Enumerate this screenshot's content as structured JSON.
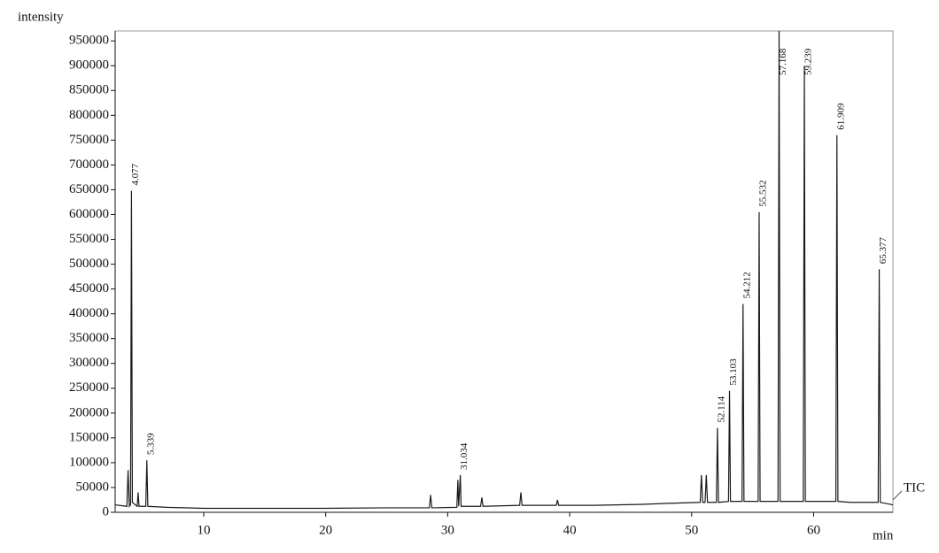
{
  "chart_data": {
    "type": "line",
    "y_label": "intensity",
    "x_label": "min",
    "trace_label": "TIC",
    "x": [
      2.74,
      3.7,
      3.8,
      3.9,
      4.0,
      4.077,
      4.15,
      4.55,
      4.62,
      4.7,
      5.25,
      5.339,
      5.42,
      7,
      10,
      15,
      20,
      25,
      28.5,
      28.6,
      28.7,
      30.75,
      30.834,
      30.9,
      31.034,
      31.1,
      32.7,
      32.8,
      32.9,
      35.9,
      36.0,
      36.1,
      38.9,
      39.0,
      39.1,
      42,
      46,
      48,
      50.7,
      50.8,
      50.9,
      51.1,
      51.2,
      51.3,
      52.03,
      52.114,
      52.2,
      53.02,
      53.103,
      53.18,
      54.13,
      54.212,
      54.29,
      55.45,
      55.532,
      55.61,
      57.08,
      57.168,
      57.25,
      59.15,
      59.239,
      59.32,
      61.82,
      61.909,
      61.99,
      63,
      65.29,
      65.377,
      65.46,
      66.5
    ],
    "series": [
      {
        "name": "TIC",
        "color": "#1a1a1a",
        "values": [
          15000,
          12000,
          85000,
          12000,
          15000,
          648000,
          20000,
          12000,
          40000,
          12000,
          12000,
          105000,
          12000,
          10000,
          8000,
          8000,
          8000,
          9000,
          9000,
          35000,
          9000,
          10000,
          65000,
          12000,
          75000,
          12000,
          12000,
          30000,
          12000,
          14000,
          40000,
          14000,
          14000,
          25000,
          14000,
          14000,
          16000,
          18000,
          20000,
          75000,
          20000,
          20000,
          75000,
          20000,
          20000,
          170000,
          20000,
          22000,
          245000,
          22000,
          22000,
          420000,
          22000,
          22000,
          605000,
          22000,
          22000,
          970000,
          22000,
          22000,
          900000,
          22000,
          22000,
          760000,
          22000,
          20000,
          20000,
          490000,
          20000,
          15000
        ]
      }
    ],
    "peak_labels": [
      4.077,
      5.339,
      31.034,
      52.114,
      53.103,
      54.212,
      55.532,
      57.168,
      59.239,
      61.909,
      65.377
    ],
    "xlim": [
      2.74,
      66.5
    ],
    "ylim": [
      0,
      970000
    ],
    "xticks": [
      10,
      20,
      30,
      40,
      50,
      60
    ],
    "yticks": [
      0,
      50000,
      100000,
      150000,
      200000,
      250000,
      300000,
      350000,
      400000,
      450000,
      500000,
      550000,
      600000,
      650000,
      700000,
      750000,
      800000,
      850000,
      900000,
      950000
    ]
  }
}
